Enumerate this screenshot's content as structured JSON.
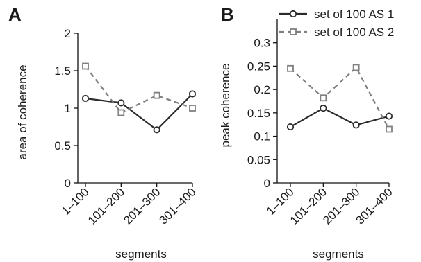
{
  "chart_data": [
    {
      "type": "line",
      "panel": "A",
      "categories": [
        "1–100",
        "101–200",
        "201–300",
        "301–400"
      ],
      "xlabel": "segments",
      "ylabel": "area of coherence",
      "ylim": [
        0,
        2
      ],
      "yticks": [
        "0",
        "0.5",
        "1",
        "1.5",
        "2"
      ],
      "ytick_values": [
        0,
        0.5,
        1,
        1.5,
        2
      ],
      "series": [
        {
          "name": "set of 100 AS 1",
          "values": [
            1.13,
            1.07,
            0.71,
            1.19
          ],
          "color": "#2b2b2b",
          "marker": "circle",
          "style": "solid"
        },
        {
          "name": "set of 100 AS 2",
          "values": [
            1.56,
            0.94,
            1.17,
            1.0
          ],
          "color": "#7f7f7f",
          "marker": "square",
          "style": "dashed"
        }
      ]
    },
    {
      "type": "line",
      "panel": "B",
      "categories": [
        "1–100",
        "101–200",
        "201–300",
        "301–400"
      ],
      "xlabel": "segments",
      "ylabel": "peak coherence",
      "ylim": [
        0,
        0.35
      ],
      "yticks": [
        "0",
        "0.05",
        "0.1",
        "0.15",
        "0.2",
        "0.25",
        "0.3"
      ],
      "ytick_values": [
        0,
        0.05,
        0.1,
        0.15,
        0.2,
        0.25,
        0.3
      ],
      "legend_position": "top-right",
      "series": [
        {
          "name": "set of 100 AS 1",
          "values": [
            0.12,
            0.16,
            0.124,
            0.143
          ],
          "color": "#2b2b2b",
          "marker": "circle",
          "style": "solid"
        },
        {
          "name": "set of 100 AS 2",
          "values": [
            0.245,
            0.182,
            0.247,
            0.115
          ],
          "color": "#7f7f7f",
          "marker": "square",
          "style": "dashed"
        }
      ]
    }
  ]
}
